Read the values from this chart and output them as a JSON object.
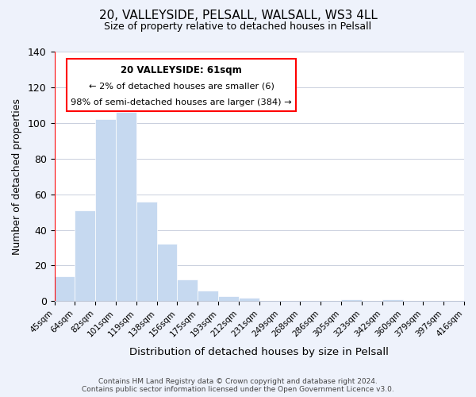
{
  "title": "20, VALLEYSIDE, PELSALL, WALSALL, WS3 4LL",
  "subtitle": "Size of property relative to detached houses in Pelsall",
  "xlabel": "Distribution of detached houses by size in Pelsall",
  "ylabel": "Number of detached properties",
  "bin_labels": [
    "45sqm",
    "64sqm",
    "82sqm",
    "101sqm",
    "119sqm",
    "138sqm",
    "156sqm",
    "175sqm",
    "193sqm",
    "212sqm",
    "231sqm",
    "249sqm",
    "268sqm",
    "286sqm",
    "305sqm",
    "323sqm",
    "342sqm",
    "360sqm",
    "379sqm",
    "397sqm",
    "416sqm"
  ],
  "bar_values": [
    14,
    51,
    102,
    106,
    56,
    32,
    12,
    6,
    3,
    2,
    0,
    0,
    0,
    0,
    1,
    0,
    1,
    0,
    0,
    0
  ],
  "bar_color": "#c6d9f0",
  "ylim": [
    0,
    140
  ],
  "yticks": [
    0,
    20,
    40,
    60,
    80,
    100,
    120,
    140
  ],
  "annotation_title": "20 VALLEYSIDE: 61sqm",
  "annotation_line1": "← 2% of detached houses are smaller (6)",
  "annotation_line2": "98% of semi-detached houses are larger (384) →",
  "footer_line1": "Contains HM Land Registry data © Crown copyright and database right 2024.",
  "footer_line2": "Contains public sector information licensed under the Open Government Licence v3.0.",
  "bg_color": "#eef2fb",
  "plot_bg_color": "#ffffff"
}
